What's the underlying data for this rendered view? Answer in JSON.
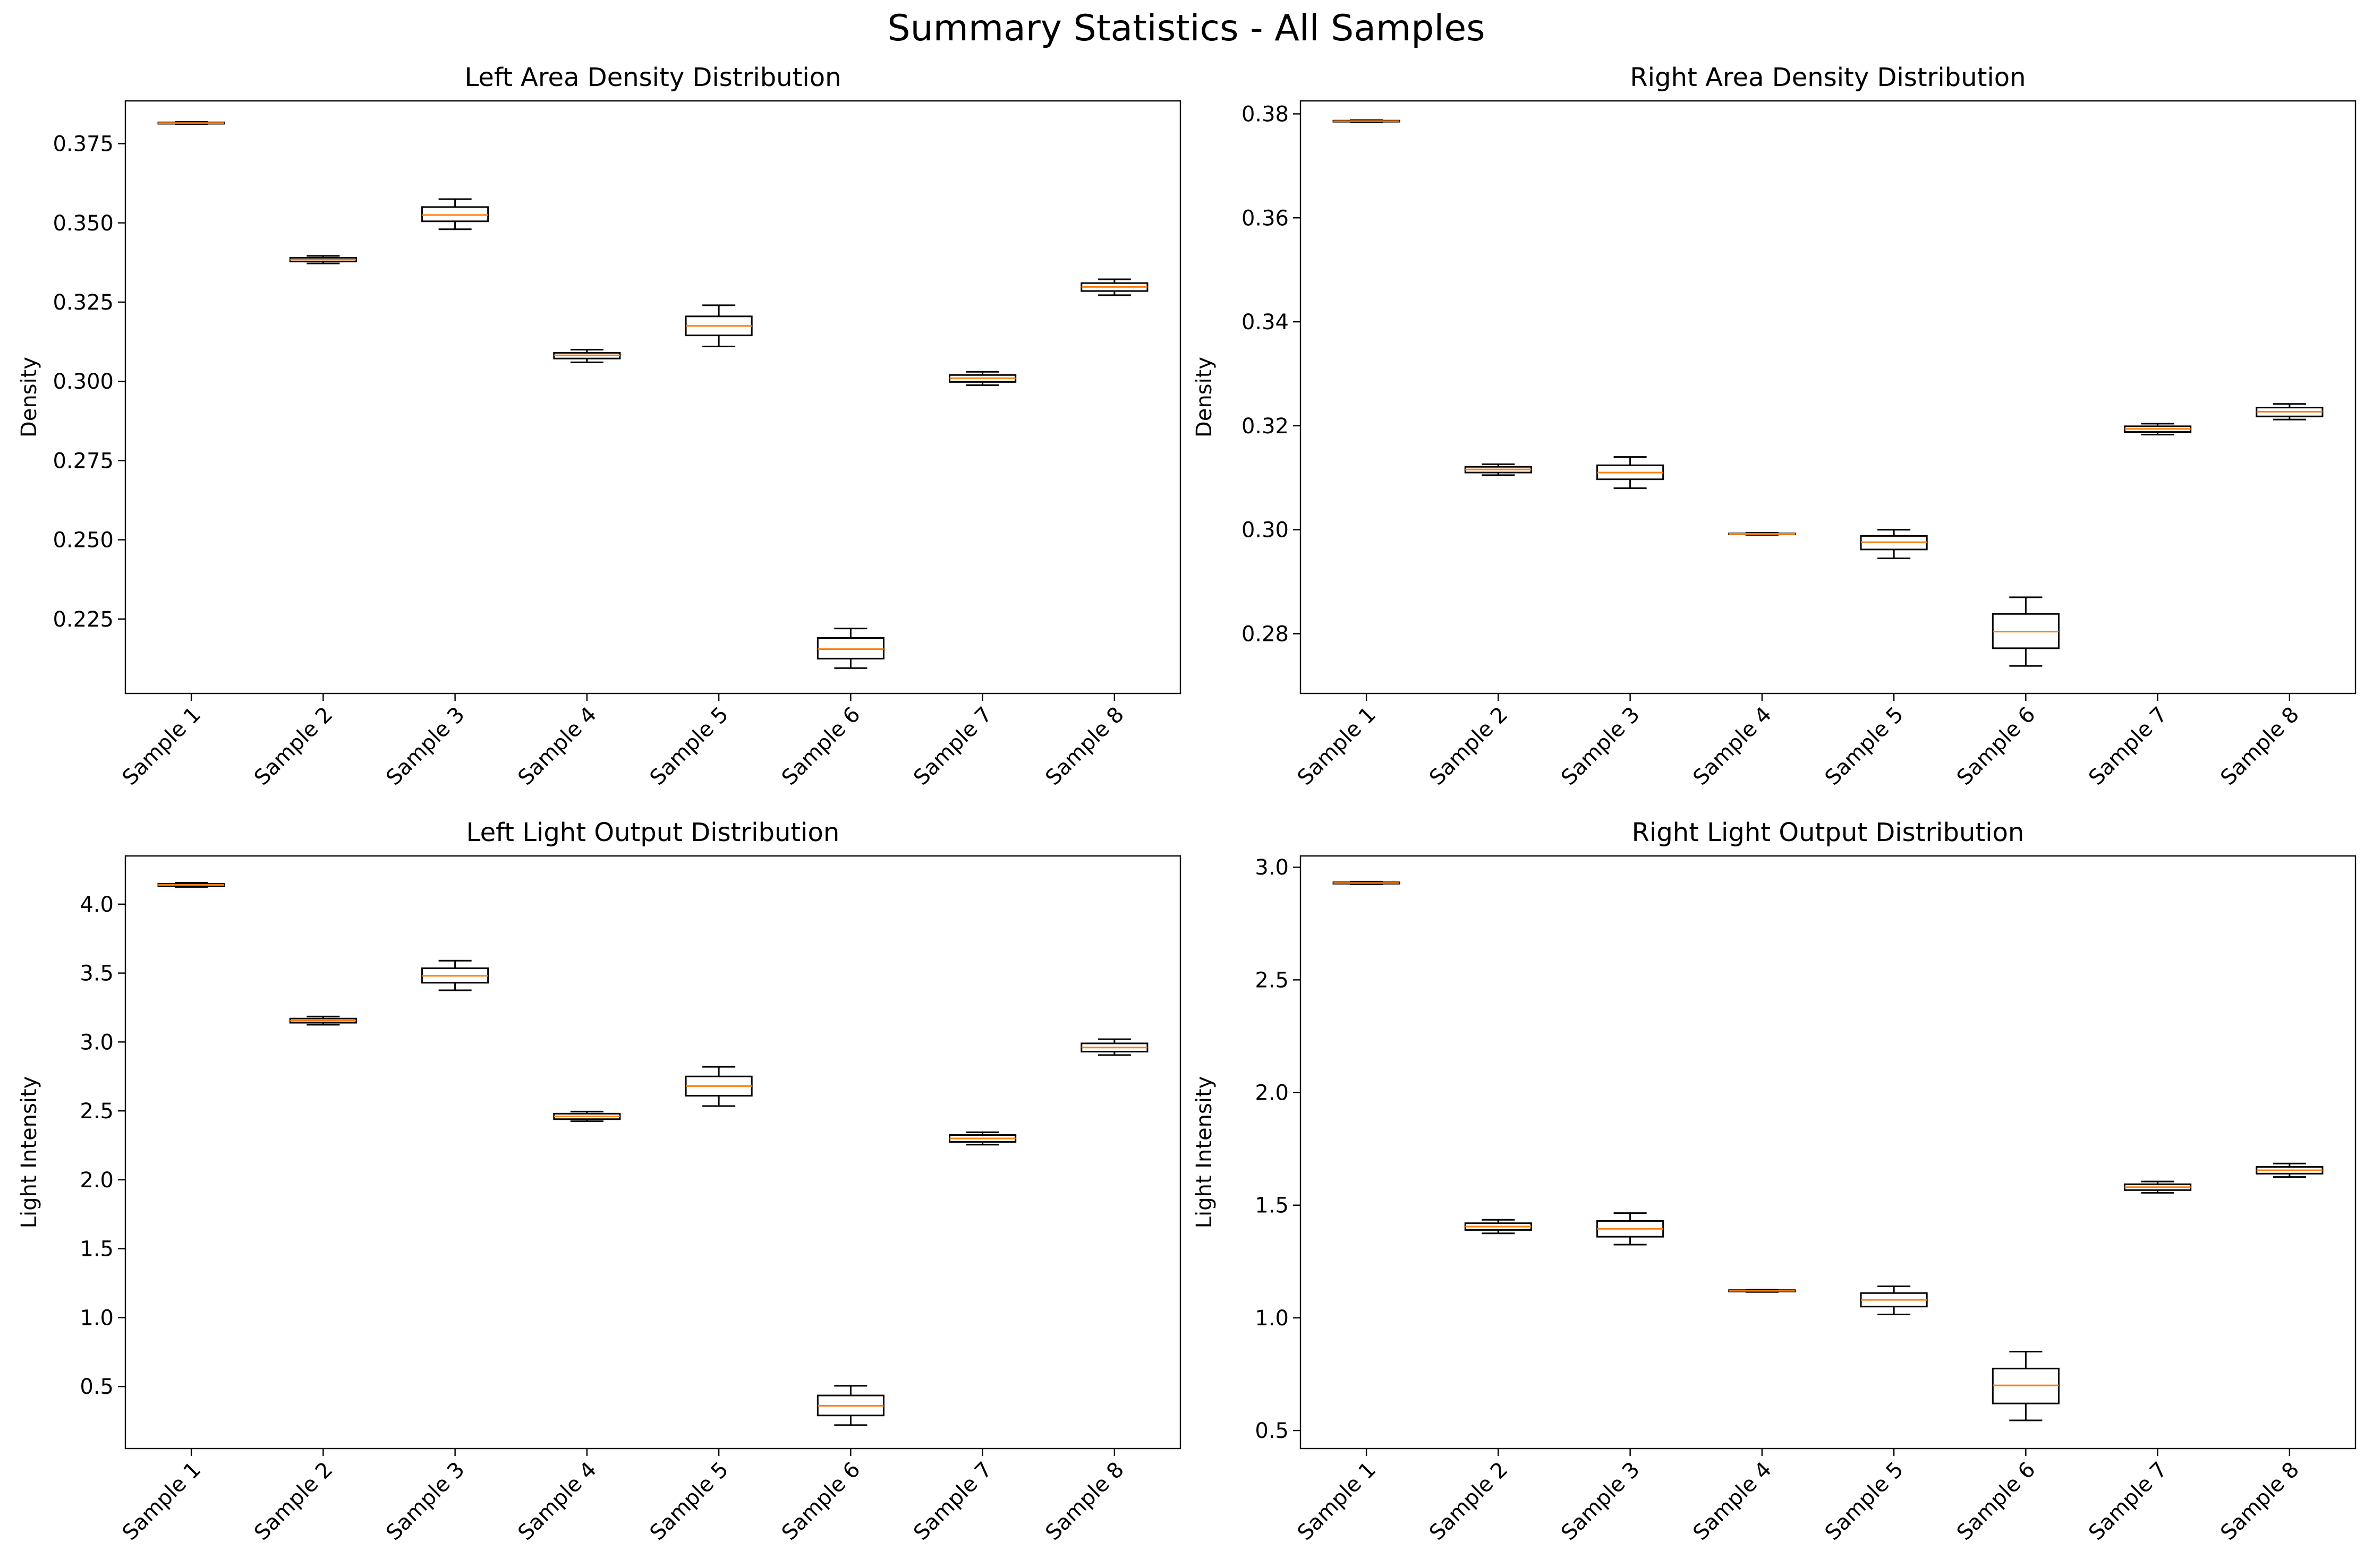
{
  "figure": {
    "title": "Summary Statistics - All Samples"
  },
  "colors": {
    "box_edge": "#000000",
    "median": "#ff7f0e",
    "background": "#ffffff"
  },
  "chart_data": [
    {
      "type": "box",
      "title": "Left Area Density Distribution",
      "xlabel": "",
      "ylabel": "Density",
      "ylim": [
        0.2015,
        0.3885
      ],
      "yticks": [
        0.225,
        0.25,
        0.275,
        0.3,
        0.325,
        0.35,
        0.375
      ],
      "ytick_labels": [
        "0.225",
        "0.250",
        "0.275",
        "0.300",
        "0.325",
        "0.350",
        "0.375"
      ],
      "categories": [
        "Sample 1",
        "Sample 2",
        "Sample 3",
        "Sample 4",
        "Sample 5",
        "Sample 6",
        "Sample 7",
        "Sample 8"
      ],
      "boxes": [
        {
          "whislo": 0.3812,
          "q1": 0.3813,
          "med": 0.3815,
          "q3": 0.3817,
          "whishi": 0.3819
        },
        {
          "whislo": 0.3372,
          "q1": 0.3378,
          "med": 0.3384,
          "q3": 0.339,
          "whishi": 0.3396
        },
        {
          "whislo": 0.348,
          "q1": 0.3505,
          "med": 0.3525,
          "q3": 0.355,
          "whishi": 0.3575
        },
        {
          "whislo": 0.306,
          "q1": 0.3072,
          "med": 0.3082,
          "q3": 0.309,
          "whishi": 0.31
        },
        {
          "whislo": 0.311,
          "q1": 0.3145,
          "med": 0.3175,
          "q3": 0.3205,
          "whishi": 0.324
        },
        {
          "whislo": 0.2095,
          "q1": 0.2125,
          "med": 0.2155,
          "q3": 0.219,
          "whishi": 0.222
        },
        {
          "whislo": 0.2988,
          "q1": 0.2998,
          "med": 0.301,
          "q3": 0.302,
          "whishi": 0.303
        },
        {
          "whislo": 0.3272,
          "q1": 0.3285,
          "med": 0.3298,
          "q3": 0.331,
          "whishi": 0.3322
        }
      ]
    },
    {
      "type": "box",
      "title": "Right Area Density Distribution",
      "xlabel": "",
      "ylabel": "Density",
      "ylim": [
        0.2685,
        0.3825
      ],
      "yticks": [
        0.28,
        0.3,
        0.32,
        0.34,
        0.36,
        0.38
      ],
      "ytick_labels": [
        "0.28",
        "0.30",
        "0.32",
        "0.34",
        "0.36",
        "0.38"
      ],
      "categories": [
        "Sample 1",
        "Sample 2",
        "Sample 3",
        "Sample 4",
        "Sample 5",
        "Sample 6",
        "Sample 7",
        "Sample 8"
      ],
      "boxes": [
        {
          "whislo": 0.3784,
          "q1": 0.3785,
          "med": 0.3786,
          "q3": 0.3787,
          "whishi": 0.3788
        },
        {
          "whislo": 0.3105,
          "q1": 0.311,
          "med": 0.3116,
          "q3": 0.3121,
          "whishi": 0.3126
        },
        {
          "whislo": 0.308,
          "q1": 0.3097,
          "med": 0.311,
          "q3": 0.3124,
          "whishi": 0.314
        },
        {
          "whislo": 0.299,
          "q1": 0.2991,
          "med": 0.2992,
          "q3": 0.2993,
          "whishi": 0.2994
        },
        {
          "whislo": 0.2945,
          "q1": 0.2962,
          "med": 0.2976,
          "q3": 0.2988,
          "whishi": 0.3
        },
        {
          "whislo": 0.2738,
          "q1": 0.2772,
          "med": 0.2804,
          "q3": 0.2838,
          "whishi": 0.287
        },
        {
          "whislo": 0.3183,
          "q1": 0.3188,
          "med": 0.3194,
          "q3": 0.3199,
          "whishi": 0.3204
        },
        {
          "whislo": 0.3212,
          "q1": 0.3218,
          "med": 0.3227,
          "q3": 0.3235,
          "whishi": 0.3242
        }
      ]
    },
    {
      "type": "box",
      "title": "Left Light Output Distribution",
      "xlabel": "",
      "ylabel": "Light Intensity",
      "ylim": [
        0.05,
        4.35
      ],
      "yticks": [
        0.5,
        1.0,
        1.5,
        2.0,
        2.5,
        3.0,
        3.5,
        4.0
      ],
      "ytick_labels": [
        "0.5",
        "1.0",
        "1.5",
        "2.0",
        "2.5",
        "3.0",
        "3.5",
        "4.0"
      ],
      "categories": [
        "Sample 1",
        "Sample 2",
        "Sample 3",
        "Sample 4",
        "Sample 5",
        "Sample 6",
        "Sample 7",
        "Sample 8"
      ],
      "boxes": [
        {
          "whislo": 4.125,
          "q1": 4.132,
          "med": 4.14,
          "q3": 4.148,
          "whishi": 4.155
        },
        {
          "whislo": 3.125,
          "q1": 3.14,
          "med": 3.155,
          "q3": 3.17,
          "whishi": 3.185
        },
        {
          "whislo": 3.375,
          "q1": 3.43,
          "med": 3.48,
          "q3": 3.535,
          "whishi": 3.59
        },
        {
          "whislo": 2.425,
          "q1": 2.44,
          "med": 2.46,
          "q3": 2.48,
          "whishi": 2.495
        },
        {
          "whislo": 2.535,
          "q1": 2.61,
          "med": 2.68,
          "q3": 2.75,
          "whishi": 2.82
        },
        {
          "whislo": 0.22,
          "q1": 0.29,
          "med": 0.36,
          "q3": 0.435,
          "whishi": 0.505
        },
        {
          "whislo": 2.255,
          "q1": 2.275,
          "med": 2.3,
          "q3": 2.325,
          "whishi": 2.345
        },
        {
          "whislo": 2.905,
          "q1": 2.93,
          "med": 2.96,
          "q3": 2.99,
          "whishi": 3.02
        }
      ]
    },
    {
      "type": "box",
      "title": "Right Light Output Distribution",
      "xlabel": "",
      "ylabel": "Light Intensity",
      "ylim": [
        0.42,
        3.05
      ],
      "yticks": [
        0.5,
        1.0,
        1.5,
        2.0,
        2.5,
        3.0
      ],
      "ytick_labels": [
        "0.5",
        "1.0",
        "1.5",
        "2.0",
        "2.5",
        "3.0"
      ],
      "categories": [
        "Sample 1",
        "Sample 2",
        "Sample 3",
        "Sample 4",
        "Sample 5",
        "Sample 6",
        "Sample 7",
        "Sample 8"
      ],
      "boxes": [
        {
          "whislo": 2.924,
          "q1": 2.927,
          "med": 2.93,
          "q3": 2.933,
          "whishi": 2.936
        },
        {
          "whislo": 1.375,
          "q1": 1.39,
          "med": 1.405,
          "q3": 1.42,
          "whishi": 1.435
        },
        {
          "whislo": 1.325,
          "q1": 1.36,
          "med": 1.395,
          "q3": 1.43,
          "whishi": 1.465
        },
        {
          "whislo": 1.115,
          "q1": 1.117,
          "med": 1.12,
          "q3": 1.123,
          "whishi": 1.125
        },
        {
          "whislo": 1.015,
          "q1": 1.05,
          "med": 1.08,
          "q3": 1.11,
          "whishi": 1.14
        },
        {
          "whislo": 0.545,
          "q1": 0.62,
          "med": 0.7,
          "q3": 0.775,
          "whishi": 0.85
        },
        {
          "whislo": 1.555,
          "q1": 1.567,
          "med": 1.58,
          "q3": 1.593,
          "whishi": 1.605
        },
        {
          "whislo": 1.625,
          "q1": 1.64,
          "med": 1.655,
          "q3": 1.67,
          "whishi": 1.685
        }
      ]
    }
  ]
}
